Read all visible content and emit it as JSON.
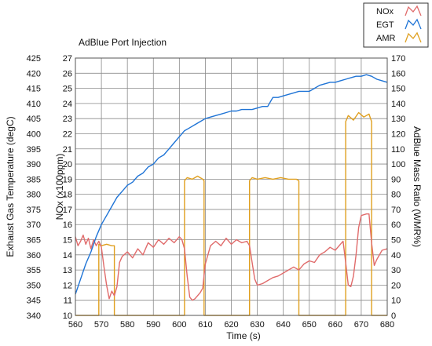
{
  "chart_data": {
    "type": "line",
    "title": "AdBlue Port Injection",
    "xlabel": "Time (s)",
    "ylabel_left_outer": "Exhaust Gas Temperature (degC)",
    "ylabel_left_inner": "NOx (x100ppm)",
    "ylabel_right": "AdBlue Mass Ratio (WMR%)",
    "xlim": [
      560,
      680
    ],
    "x_ticks": [
      560,
      570,
      580,
      590,
      600,
      610,
      620,
      630,
      640,
      650,
      660,
      670,
      680
    ],
    "egt_axis": {
      "range": [
        340,
        425
      ],
      "ticks": [
        340,
        345,
        350,
        355,
        360,
        365,
        370,
        375,
        380,
        385,
        390,
        395,
        400,
        405,
        410,
        415,
        420,
        425
      ]
    },
    "nox_axis": {
      "range": [
        10,
        27
      ],
      "ticks": [
        10,
        11,
        12,
        13,
        14,
        15,
        16,
        17,
        18,
        19,
        20,
        21,
        22,
        23,
        24,
        25,
        26,
        27
      ]
    },
    "amr_axis": {
      "range": [
        0,
        170
      ],
      "ticks": [
        0,
        10,
        20,
        30,
        40,
        50,
        60,
        70,
        80,
        90,
        100,
        110,
        120,
        130,
        140,
        150,
        160,
        170
      ]
    },
    "grid": true,
    "legend": {
      "position": "top-right",
      "entries": [
        "NOx",
        "EGT",
        "AMR"
      ]
    },
    "series": [
      {
        "name": "NOx",
        "axis": "nox",
        "color": "#e06b6b",
        "x": [
          560,
          561,
          562,
          563,
          564,
          565,
          566,
          567,
          568,
          569,
          570,
          571,
          572,
          573,
          574,
          575,
          576,
          577,
          578,
          580,
          582,
          584,
          586,
          588,
          590,
          592,
          594,
          596,
          598,
          600,
          601,
          602,
          603,
          604,
          605,
          606,
          607,
          608,
          609,
          610,
          612,
          614,
          616,
          618,
          620,
          622,
          624,
          626,
          627,
          628,
          629,
          630,
          632,
          634,
          636,
          638,
          640,
          642,
          644,
          646,
          648,
          650,
          652,
          654,
          656,
          658,
          660,
          662,
          663,
          664,
          665,
          666,
          667,
          668,
          669,
          670,
          672,
          673,
          674,
          675,
          676,
          678,
          680
        ],
        "values": [
          15.2,
          14.6,
          14.9,
          15.3,
          14.7,
          15.1,
          14.4,
          15.0,
          14.6,
          14.9,
          14.5,
          13.2,
          12.0,
          11.1,
          11.6,
          11.3,
          11.9,
          13.5,
          13.9,
          14.2,
          13.8,
          14.4,
          14.0,
          14.8,
          14.5,
          15.0,
          14.7,
          15.1,
          14.8,
          15.2,
          15.0,
          14.4,
          12.6,
          11.2,
          11.0,
          11.1,
          11.3,
          11.5,
          11.8,
          13.4,
          14.6,
          14.9,
          14.6,
          15.1,
          14.7,
          15.0,
          14.8,
          14.9,
          14.6,
          13.5,
          12.4,
          12.0,
          12.1,
          12.3,
          12.5,
          12.6,
          12.8,
          13.0,
          13.2,
          13.0,
          13.4,
          13.6,
          13.5,
          14.0,
          14.2,
          14.5,
          14.3,
          14.7,
          14.9,
          13.5,
          12.0,
          11.9,
          12.6,
          14.0,
          15.8,
          16.6,
          16.7,
          16.7,
          14.8,
          13.3,
          13.7,
          14.3,
          14.4
        ]
      },
      {
        "name": "EGT",
        "axis": "egt",
        "color": "#1f74d6",
        "x": [
          560,
          562,
          564,
          566,
          568,
          570,
          572,
          574,
          576,
          578,
          580,
          582,
          584,
          586,
          588,
          590,
          592,
          594,
          596,
          598,
          600,
          602,
          604,
          606,
          608,
          610,
          612,
          614,
          616,
          618,
          620,
          622,
          624,
          626,
          628,
          630,
          632,
          634,
          636,
          638,
          640,
          642,
          644,
          646,
          648,
          650,
          652,
          654,
          656,
          658,
          660,
          662,
          664,
          666,
          668,
          670,
          672,
          674,
          676,
          678,
          680
        ],
        "values": [
          347,
          352,
          357,
          361,
          366,
          370,
          373,
          376,
          379,
          381,
          383,
          384,
          386,
          387,
          389,
          390,
          392,
          393,
          395,
          397,
          399,
          401,
          402,
          403,
          404,
          405,
          405.5,
          406,
          406.5,
          407,
          407.5,
          407.5,
          408,
          408,
          408,
          408.5,
          409,
          409,
          412,
          412,
          412.5,
          413,
          413.5,
          414,
          414,
          414,
          415,
          416,
          416.5,
          417,
          417,
          417.5,
          418,
          418.5,
          419,
          419,
          419.5,
          419,
          418,
          417.5,
          417
        ]
      },
      {
        "name": "AMR",
        "axis": "amr",
        "color": "#e0a020",
        "x": [
          560,
          569,
          569,
          570,
          572,
          574,
          575,
          575,
          602,
          602,
          603,
          605,
          607,
          609,
          609.5,
          609.5,
          627,
          627,
          628,
          630,
          633,
          636,
          639,
          642,
          645,
          646,
          646,
          664,
          664,
          665,
          667,
          669,
          671,
          673,
          674,
          674,
          680
        ],
        "values": [
          0,
          0,
          47,
          46,
          47,
          46,
          46,
          0,
          0,
          89,
          91,
          90,
          92,
          90,
          89,
          0,
          0,
          89,
          91,
          90,
          91,
          90,
          91,
          90,
          90,
          89,
          0,
          0,
          128,
          132,
          129,
          134,
          131,
          133,
          128,
          0,
          0
        ]
      }
    ]
  }
}
